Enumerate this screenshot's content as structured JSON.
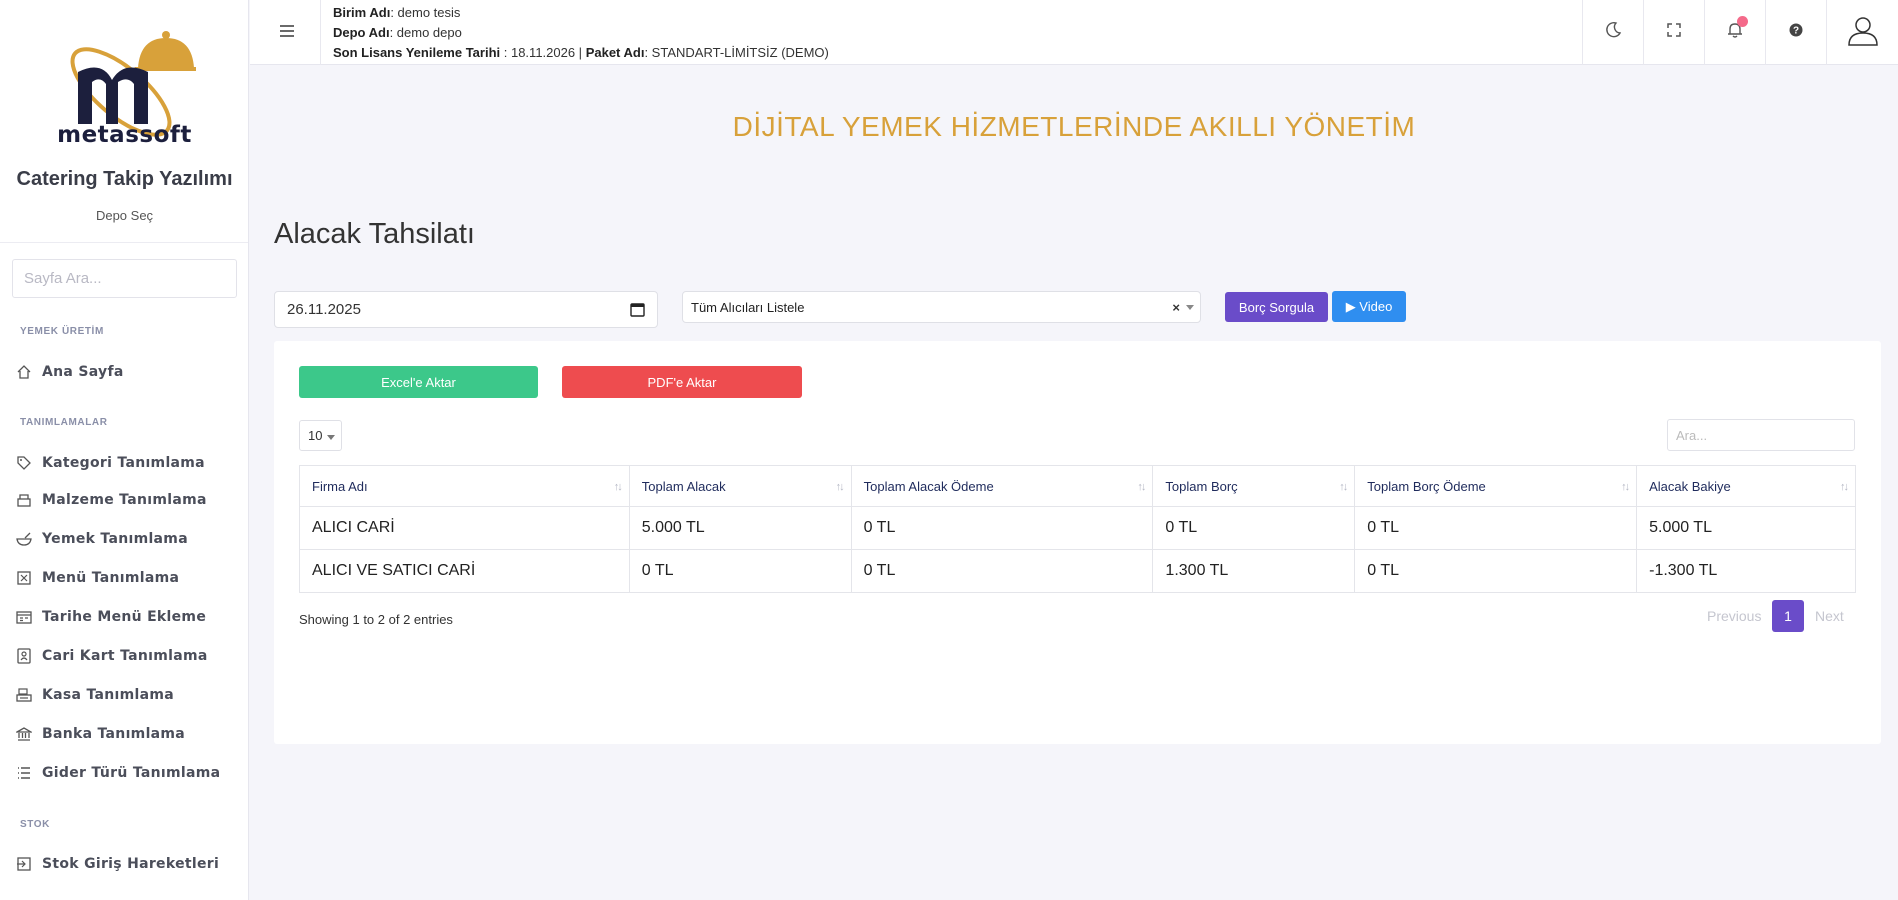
{
  "sidebar": {
    "brand": "metassoft",
    "app_title": "Catering Takip Yazılımı",
    "depo_select": "Depo Seç",
    "search_placeholder": "Sayfa Ara...",
    "sections": [
      {
        "title": "YEMEK ÜRETİM",
        "items": [
          {
            "label": "Ana Sayfa",
            "icon": "home-icon"
          }
        ]
      },
      {
        "title": "TANIMLAMALAR",
        "items": [
          {
            "label": "Kategori Tanımlama",
            "icon": "tag-icon"
          },
          {
            "label": "Malzeme Tanımlama",
            "icon": "ingredients-icon"
          },
          {
            "label": "Yemek Tanımlama",
            "icon": "bowl-icon"
          },
          {
            "label": "Menü Tanımlama",
            "icon": "menu-card-icon"
          },
          {
            "label": "Tarihe Menü Ekleme",
            "icon": "calendar-menu-icon"
          },
          {
            "label": "Cari Kart Tanımlama",
            "icon": "contact-card-icon"
          },
          {
            "label": "Kasa Tanımlama",
            "icon": "cash-register-icon"
          },
          {
            "label": "Banka Tanımlama",
            "icon": "bank-icon"
          },
          {
            "label": "Gider Türü Tanımlama",
            "icon": "list-icon"
          }
        ]
      },
      {
        "title": "STOK",
        "items": [
          {
            "label": "Stok Giriş Hareketleri",
            "icon": "stock-in-icon"
          }
        ]
      }
    ]
  },
  "topbar": {
    "birim_label": "Birim Adı",
    "birim_value": ": demo tesis",
    "depo_label": "Depo Adı",
    "depo_value": ": demo depo",
    "lisans_label": "Son Lisans Yenileme Tarihi",
    "lisans_value": " : 18.11.2026 | ",
    "paket_label": "Paket Adı",
    "paket_value": ": STANDART-LİMİTSİZ (DEMO)",
    "icons": [
      "moon-icon",
      "fullscreen-icon",
      "bell-icon",
      "help-icon",
      "user-icon"
    ]
  },
  "slogan": "DİJİTAL YEMEK HİZMETLERİNDE AKILLI YÖNETİM",
  "page_title": "Alacak Tahsilatı",
  "filters": {
    "date": "26.11.2025",
    "recipient": "Tüm Alıcıları Listele",
    "clear": "×",
    "query_button": "Borç Sorgula",
    "video_button": "▶ Video"
  },
  "export": {
    "excel": "Excel'e Aktar",
    "pdf": "PDF'e Aktar"
  },
  "table": {
    "page_length": "10",
    "search_placeholder": "Ara...",
    "headers": [
      "Firma Adı",
      "Toplam Alacak",
      "Toplam Alacak Ödeme",
      "Toplam Borç",
      "Toplam Borç Ödeme",
      "Alacak Bakiye"
    ],
    "rows": [
      [
        "ALICI CARİ",
        "5.000 TL",
        "0 TL",
        "0 TL",
        "0 TL",
        "5.000 TL"
      ],
      [
        "ALICI VE SATICI CARİ",
        "0 TL",
        "0 TL",
        "1.300 TL",
        "0 TL",
        "-1.300 TL"
      ]
    ],
    "info": "Showing 1 to 2 of 2 entries",
    "pagination": {
      "previous": "Previous",
      "current": "1",
      "next": "Next"
    }
  },
  "colors": {
    "accent_purple": "#6a4cc9",
    "video_blue": "#2f8ef0",
    "excel_green": "#3cc88a",
    "pdf_red": "#ee4c4f",
    "slogan_gold": "#d8a13a"
  }
}
